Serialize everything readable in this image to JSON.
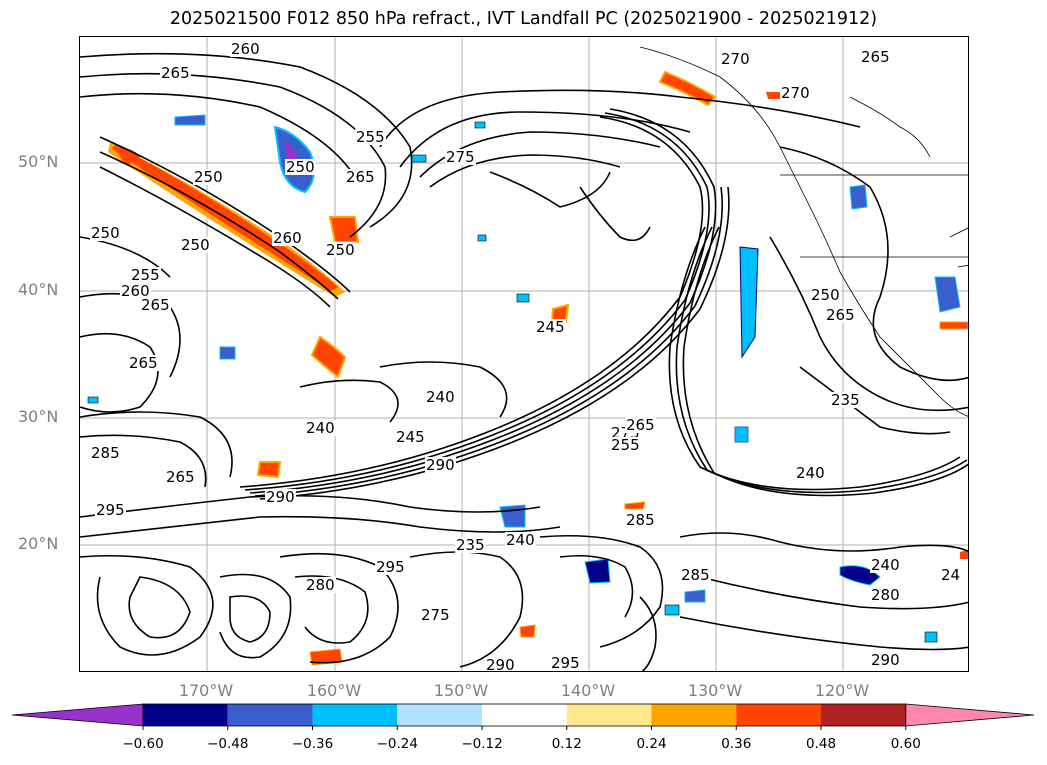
{
  "title": "2025021500 F012 850 hPa refract., IVT Landfall PC (2025021900 - 2025021912)",
  "latitude_labels": [
    "50°N",
    "40°N",
    "30°N",
    "20°N"
  ],
  "longitude_labels": [
    "170°W",
    "160°W",
    "150°W",
    "140°W",
    "130°W",
    "120°W"
  ],
  "colorbar": {
    "ticks": [
      "−0.60",
      "−0.48",
      "−0.36",
      "−0.24",
      "−0.12",
      "0.12",
      "0.24",
      "0.36",
      "0.48",
      "0.60"
    ],
    "colors": [
      "#9932cc",
      "#00008b",
      "#3a5fcd",
      "#00bfff",
      "#b0e2ff",
      "#ffffff",
      "#ffe98c",
      "#ffa500",
      "#ff4500",
      "#b22222",
      "#ff86b0"
    ]
  },
  "contour_labels": [
    {
      "text": "260"
    },
    {
      "text": "265"
    },
    {
      "text": "270"
    },
    {
      "text": "265"
    },
    {
      "text": "270"
    },
    {
      "text": "255"
    },
    {
      "text": "250"
    },
    {
      "text": "275"
    },
    {
      "text": "265"
    },
    {
      "text": "250"
    },
    {
      "text": "250"
    },
    {
      "text": "260"
    },
    {
      "text": "250"
    },
    {
      "text": "255"
    },
    {
      "text": "260"
    },
    {
      "text": "265"
    },
    {
      "text": "265"
    },
    {
      "text": "250"
    },
    {
      "text": "265"
    },
    {
      "text": "245"
    },
    {
      "text": "240"
    },
    {
      "text": "240"
    },
    {
      "text": "245"
    },
    {
      "text": "290"
    },
    {
      "text": "290"
    },
    {
      "text": "285"
    },
    {
      "text": "265"
    },
    {
      "text": "275"
    },
    {
      "text": "265"
    },
    {
      "text": "255"
    },
    {
      "text": "235"
    },
    {
      "text": "240"
    },
    {
      "text": "295"
    },
    {
      "text": "280"
    },
    {
      "text": "240"
    },
    {
      "text": "280"
    },
    {
      "text": "275"
    },
    {
      "text": "295"
    },
    {
      "text": "290"
    },
    {
      "text": "295"
    },
    {
      "text": "290"
    },
    {
      "text": "285"
    },
    {
      "text": "285"
    },
    {
      "text": "24"
    },
    {
      "text": "250"
    },
    {
      "text": "235"
    },
    {
      "text": "240"
    }
  ]
}
